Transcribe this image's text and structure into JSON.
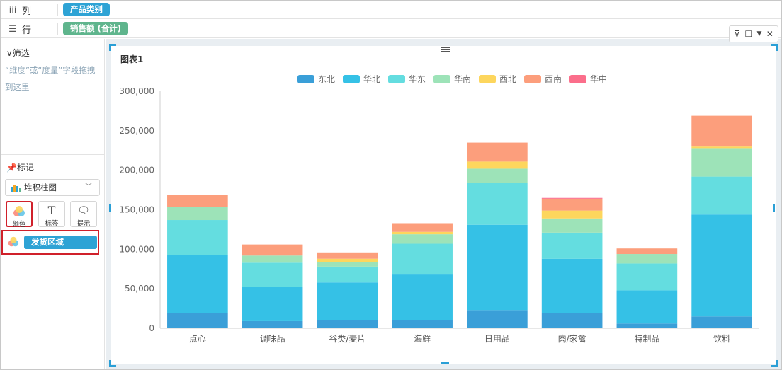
{
  "shelves": {
    "columns": {
      "label": "列",
      "icon": "columns-icon",
      "field": "产品类别"
    },
    "rows": {
      "label": "行",
      "icon": "rows-icon",
      "field": "销售额 (合计)"
    }
  },
  "filter": {
    "title": "筛选",
    "hint": "“维度”或“度量”字段拖拽到这里"
  },
  "marks": {
    "title": "标记",
    "chart_type": "堆积柱图",
    "buttons": {
      "color": "颜色",
      "label": "标签",
      "tooltip": "提示"
    },
    "color_field": "发货区域"
  },
  "chart_title": "图表1",
  "colors": {
    "东北": "#3a9fd8",
    "华北": "#35c1e6",
    "华东": "#64dde0",
    "华南": "#9de3b8",
    "西北": "#fdd65d",
    "西南": "#fc9e7c",
    "华中": "#fb6e8b"
  },
  "chart_data": {
    "type": "bar",
    "stacked": true,
    "title": "图表1",
    "categories": [
      "点心",
      "调味品",
      "谷类/麦片",
      "海鲜",
      "日用品",
      "肉/家禽",
      "特制品",
      "饮料"
    ],
    "series": [
      {
        "name": "东北",
        "values": [
          19000,
          9000,
          10000,
          10000,
          23000,
          19000,
          6000,
          15000
        ]
      },
      {
        "name": "华北",
        "values": [
          74000,
          43000,
          48000,
          58000,
          108000,
          69000,
          42000,
          129000
        ]
      },
      {
        "name": "华东",
        "values": [
          44000,
          31000,
          20000,
          39000,
          53000,
          33000,
          34000,
          48000
        ]
      },
      {
        "name": "华南",
        "values": [
          17000,
          9000,
          6000,
          12000,
          18000,
          18000,
          12000,
          36000
        ]
      },
      {
        "name": "西北",
        "values": [
          0,
          0,
          4000,
          3000,
          9000,
          10000,
          0,
          2000
        ]
      },
      {
        "name": "西南",
        "values": [
          15000,
          14000,
          8000,
          11000,
          24000,
          15000,
          7000,
          39000
        ]
      },
      {
        "name": "华中",
        "values": [
          0,
          0,
          0,
          0,
          0,
          1000,
          0,
          0
        ]
      }
    ],
    "ylim": [
      0,
      300000
    ],
    "yticks": [
      "0",
      "50,000",
      "100,000",
      "150,000",
      "200,000",
      "250,000",
      "300,000"
    ],
    "legend_position": "top-center",
    "grid": false
  }
}
